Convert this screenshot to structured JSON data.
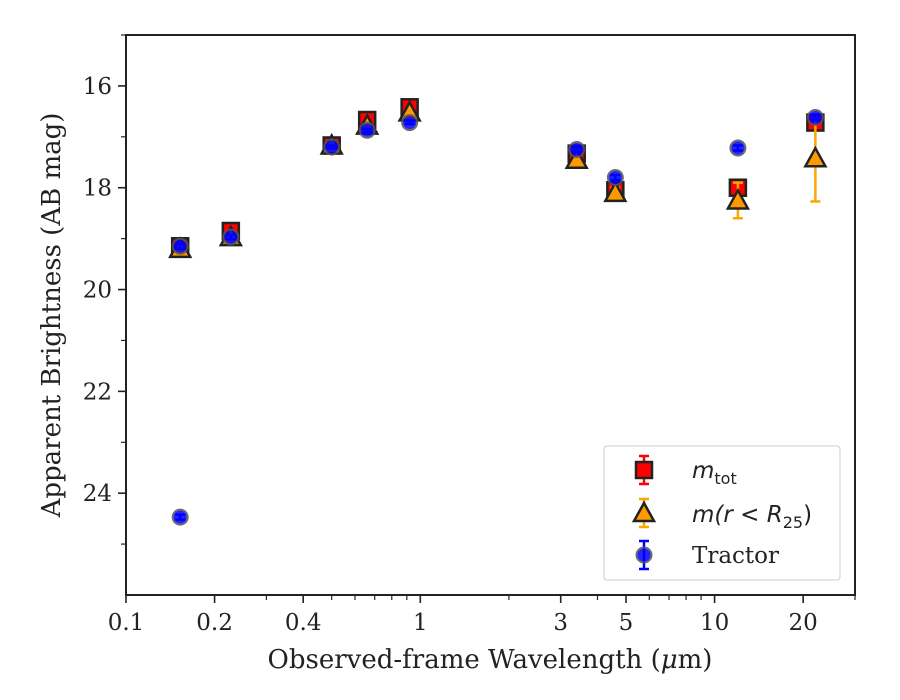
{
  "chart_data": {
    "type": "scatter",
    "xlabel_text": "Observed-frame Wavelength (",
    "xlabel_mu": "μ",
    "xlabel_unit": "m)",
    "ylabel": "Apparent Brightness (AB mag)",
    "x_scale": "log",
    "xlim": [
      0.1,
      30
    ],
    "ylim": [
      26,
      15
    ],
    "y_inverted": true,
    "grid": false,
    "legend_placement": "lower right",
    "x_ticks": [
      0.1,
      0.2,
      0.4,
      1,
      3,
      5,
      10,
      20
    ],
    "x_tick_labels": [
      "0.1",
      "0.2",
      "0.4",
      "1",
      "3",
      "5",
      "10",
      "20"
    ],
    "y_ticks": [
      16,
      18,
      20,
      22,
      24
    ],
    "y_tick_labels": [
      "16",
      "18",
      "20",
      "22",
      "24"
    ],
    "colors": {
      "m_tot": "#ff0000",
      "m_r25_err": "#ffa500",
      "m_r25_fill": "#ff9900",
      "tractor": "#0000ff",
      "edge": "#222222"
    },
    "series": [
      {
        "name": "m_tot",
        "legend_label": "m",
        "legend_sub": "tot",
        "marker": "square",
        "x": [
          0.1528,
          0.2271,
          0.5,
          0.66,
          0.92,
          3.4,
          4.6,
          12,
          22
        ],
        "y": [
          19.15,
          18.85,
          17.17,
          16.67,
          16.42,
          17.33,
          18.05,
          18.0,
          16.72
        ],
        "yerr": [
          0.1,
          0.05,
          0.04,
          0.04,
          0.04,
          0.06,
          0.1,
          0.15,
          0.08
        ]
      },
      {
        "name": "m(r < R25)",
        "legend_label": "m(r < R",
        "legend_sub": "25",
        "legend_close": ")",
        "marker": "triangle",
        "x": [
          0.1528,
          0.2271,
          0.5,
          0.66,
          0.92,
          3.4,
          4.6,
          12,
          22
        ],
        "y": [
          19.2,
          18.97,
          17.17,
          16.78,
          16.52,
          17.45,
          18.1,
          18.25,
          17.42
        ],
        "yerr": [
          0.1,
          0.05,
          0.04,
          0.04,
          0.04,
          0.06,
          0.1,
          0.35,
          0.85
        ]
      },
      {
        "name": "Tractor",
        "legend_label": "Tractor",
        "marker": "circle",
        "x": [
          0.1528,
          0.1528,
          0.2271,
          0.5,
          0.66,
          0.92,
          3.4,
          4.6,
          12,
          22
        ],
        "y": [
          24.47,
          19.15,
          18.97,
          17.2,
          16.87,
          16.72,
          17.25,
          17.8,
          17.22,
          16.62
        ],
        "yerr": [
          0.05,
          0.05,
          0.04,
          0.03,
          0.03,
          0.03,
          0.04,
          0.05,
          0.05,
          0.05
        ]
      }
    ]
  }
}
